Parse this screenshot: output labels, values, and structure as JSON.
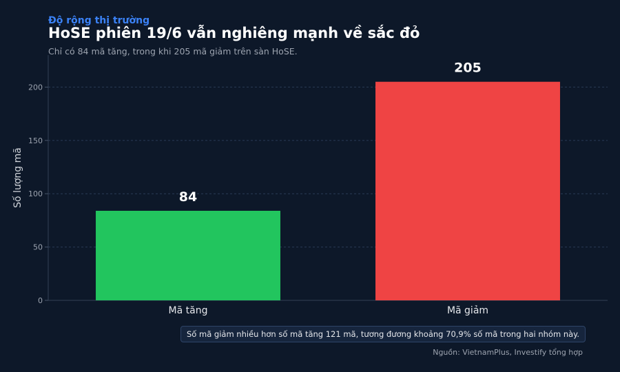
{
  "header": {
    "kicker": "Độ rộng thị trường",
    "title": "HoSE phiên 19/6 vẫn nghiêng mạnh về sắc đỏ",
    "subtitle": "Chỉ có 84 mã tăng, trong khi 205 mã giảm trên sàn HoSE."
  },
  "annotation": "Số mã giảm nhiều hơn số mã tăng 121 mã, tương đương khoảng 70,9% số mã trong hai nhóm này.",
  "source": "Nguồn: VietnamPlus, Investify tổng hợp",
  "chart_data": {
    "type": "bar",
    "categories": [
      "Mã tăng",
      "Mã giảm"
    ],
    "values": [
      84,
      205
    ],
    "colors": [
      "#22c55e",
      "#ef4444"
    ],
    "ylabel": "Số lượng mã",
    "ylim": [
      0,
      230
    ],
    "yticks": [
      0,
      50,
      100,
      150,
      200
    ],
    "grid": true,
    "data_labels": true
  }
}
